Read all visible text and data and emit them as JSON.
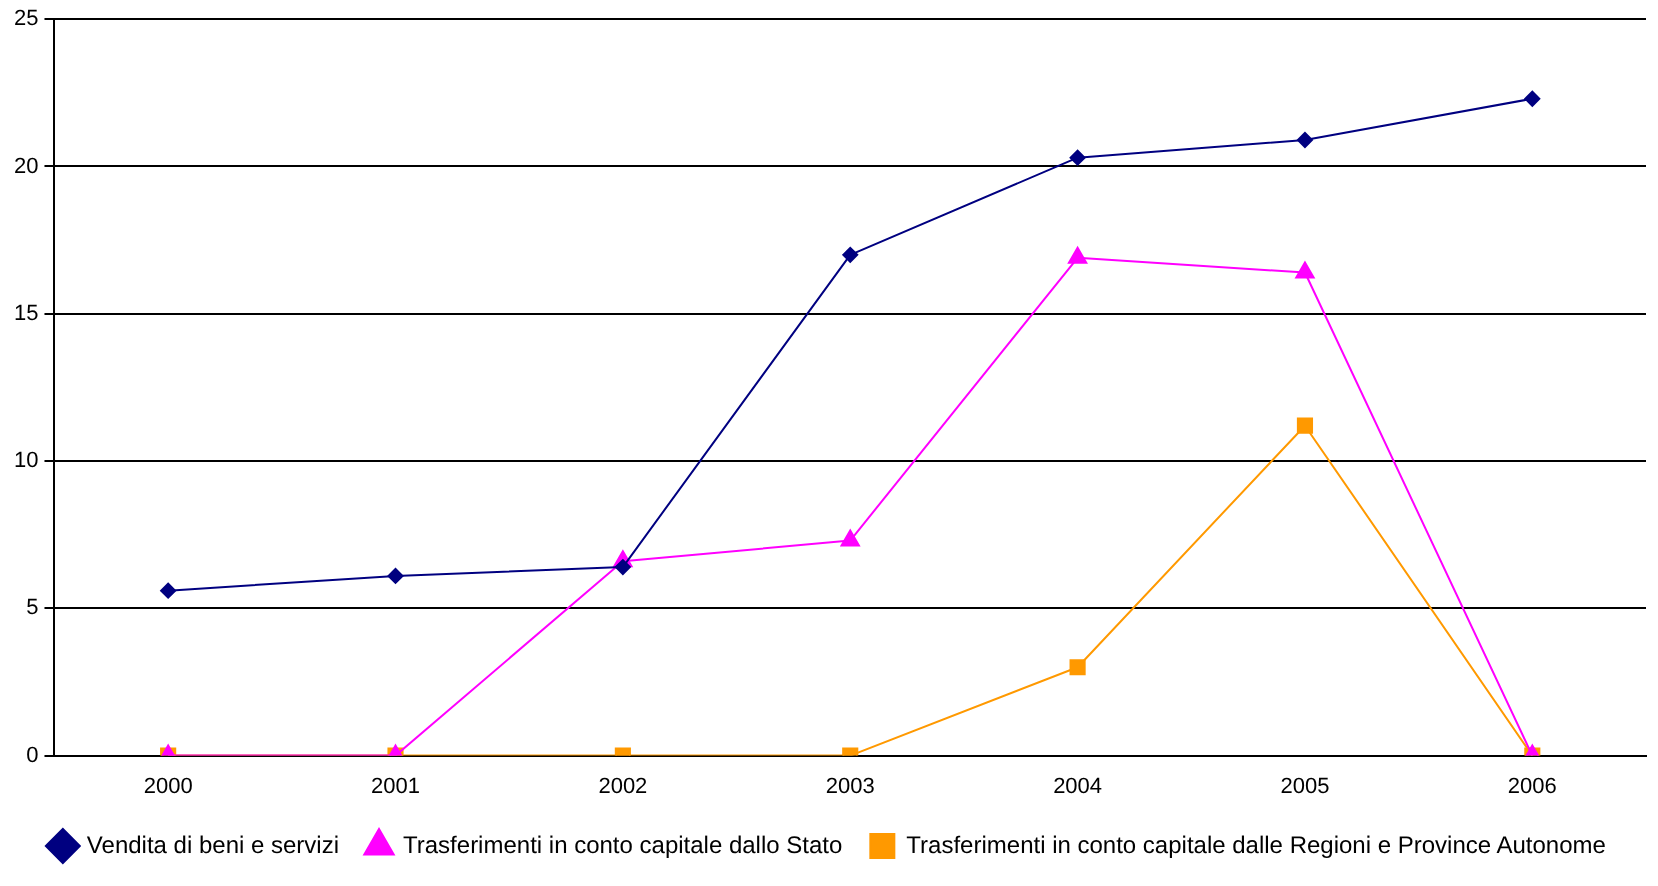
{
  "chart_data": {
    "type": "line",
    "categories": [
      "2000",
      "2001",
      "2002",
      "2003",
      "2004",
      "2005",
      "2006"
    ],
    "series": [
      {
        "name": "Vendita di beni e servizi",
        "color": "#000080",
        "marker": "diamond",
        "values": [
          5.6,
          6.1,
          6.4,
          17.0,
          20.3,
          20.9,
          22.3
        ]
      },
      {
        "name": "Trasferimenti in conto capitale dallo Stato",
        "color": "#ff00ff",
        "marker": "triangle",
        "values": [
          0,
          0,
          6.6,
          7.3,
          16.9,
          16.4,
          0
        ]
      },
      {
        "name": "Trasferimenti in conto capitale dalle Regioni e Province Autonome",
        "color": "#ff9900",
        "marker": "square",
        "values": [
          0,
          0,
          0,
          0,
          3.0,
          11.2,
          0
        ]
      }
    ],
    "ylim": [
      0,
      25
    ],
    "yticks": [
      0,
      5,
      10,
      15,
      20,
      25
    ],
    "grid": "y",
    "legend": "bottom",
    "line_style": "solid"
  }
}
